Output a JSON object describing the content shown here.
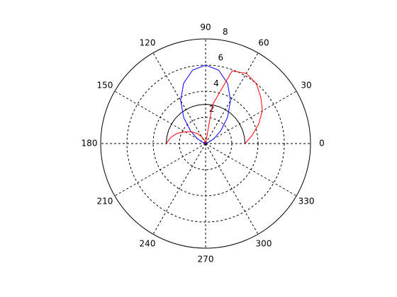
{
  "chart_data": {
    "type": "polar",
    "theta": [
      0,
      10,
      20,
      30,
      40,
      50,
      60,
      70,
      80,
      90,
      100,
      110,
      120,
      130,
      140,
      150,
      160,
      170,
      180
    ],
    "series": [
      {
        "color": "#000000",
        "values": [
          3,
          3,
          3,
          3,
          3,
          3,
          3,
          3,
          3,
          3,
          3,
          3,
          3,
          3,
          3,
          3,
          3,
          3,
          3
        ]
      },
      {
        "color": "#0000ff",
        "values": [
          0,
          0,
          0.2,
          0.7,
          1.5,
          2.6,
          3.8,
          4.9,
          5.7,
          6,
          5.7,
          4.9,
          3.8,
          2.6,
          1.5,
          0.7,
          0.2,
          0,
          0
        ]
      },
      {
        "color": "#ff0000",
        "values": [
          3,
          3.6,
          4.3,
          5.0,
          5.5,
          6.0,
          6.2,
          5.9,
          3.0,
          0,
          0.1,
          0.3,
          0.6,
          1.0,
          1.4,
          1.8,
          2.3,
          2.7,
          3
        ]
      }
    ],
    "rlim": [
      0,
      8
    ],
    "rticks": [
      2,
      4,
      6,
      8
    ],
    "thetaticks": [
      0,
      30,
      60,
      90,
      120,
      150,
      180,
      210,
      240,
      270,
      300,
      330
    ],
    "grid": true
  }
}
